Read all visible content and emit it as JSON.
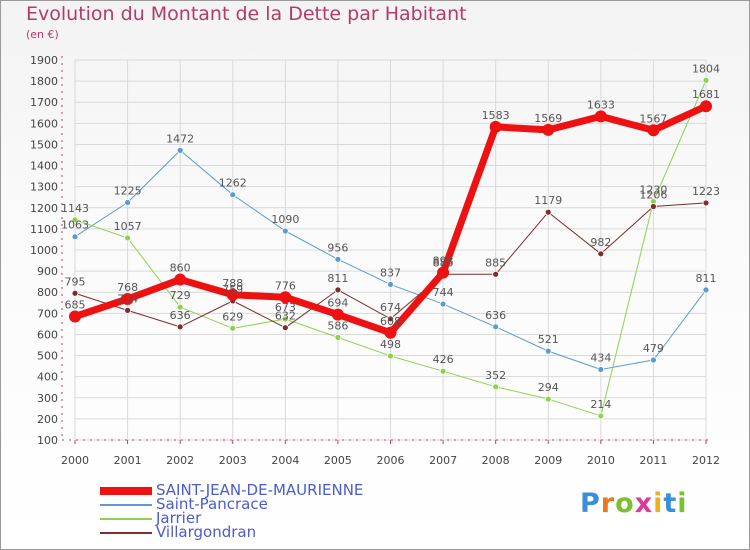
{
  "title": "Evolution du Montant de la Dette par Habitant",
  "subtitle": "(en €)",
  "logo": "Proxiti",
  "chart_data": {
    "type": "line",
    "x": [
      "2000",
      "2001",
      "2002",
      "2003",
      "2004",
      "2005",
      "2006",
      "2007",
      "2008",
      "2009",
      "2010",
      "2011",
      "2012"
    ],
    "ylim": [
      100,
      1900
    ],
    "yticks": [
      100,
      200,
      300,
      400,
      500,
      600,
      700,
      800,
      900,
      1000,
      1100,
      1200,
      1300,
      1400,
      1500,
      1600,
      1700,
      1800,
      1900
    ],
    "grid": true,
    "legend_position": "bottom-left",
    "series": [
      {
        "name": "Saint-Pancrace",
        "color": "#5b9bd5",
        "width": 1,
        "values": [
          1063,
          1225,
          1472,
          1262,
          1090,
          956,
          837,
          744,
          636,
          521,
          434,
          479,
          811
        ]
      },
      {
        "name": "Jarrier",
        "color": "#8fd14f",
        "width": 1,
        "values": [
          1143,
          1057,
          729,
          629,
          673,
          586,
          498,
          426,
          352,
          294,
          214,
          1230,
          1804
        ]
      },
      {
        "name": "Villargondran",
        "color": "#7a2e2e",
        "width": 1,
        "values": [
          795,
          714,
          636,
          759,
          632,
          811,
          674,
          885,
          885,
          1179,
          982,
          1206,
          1223
        ]
      },
      {
        "name": "SAINT-JEAN-DE-MAURIENNE",
        "color": "#ee1111",
        "width": 7,
        "values": [
          685,
          768,
          860,
          788,
          776,
          694,
          608,
          893,
          1583,
          1569,
          1633,
          1567,
          1681
        ]
      }
    ],
    "legend_order": [
      "SAINT-JEAN-DE-MAURIENNE",
      "Saint-Pancrace",
      "Jarrier",
      "Villargondran"
    ]
  }
}
